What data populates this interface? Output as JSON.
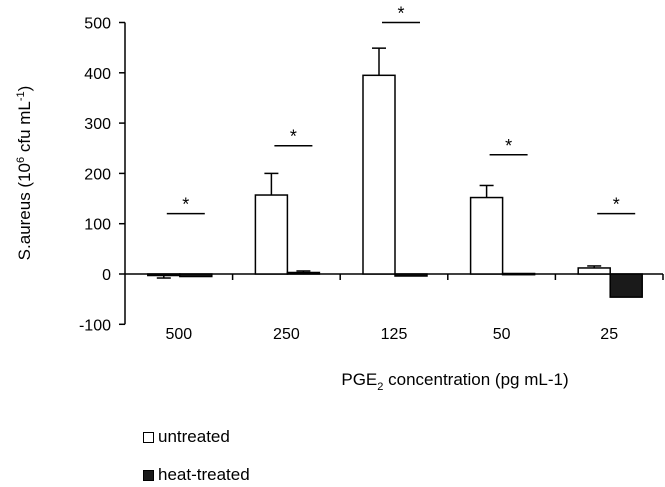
{
  "chart_data": {
    "type": "bar",
    "title": "",
    "xlabel_main": "PGE",
    "xlabel_sub": "2",
    "xlabel_rest": " concentration (pg mL-1)",
    "ylabel_main": "S.aureus (10",
    "ylabel_sup1": "6",
    "ylabel_mid": " cfu mL",
    "ylabel_sup2": "-1",
    "ylabel_end": ")",
    "categories": [
      "500",
      "250",
      "125",
      "50",
      "25"
    ],
    "ylim": [
      -100,
      500
    ],
    "yticks": [
      "-100",
      "0",
      "100",
      "200",
      "300",
      "400",
      "500"
    ],
    "grid": false,
    "legend_position": "bottom-left",
    "series": [
      {
        "name": "untreated",
        "values": [
          -3,
          157,
          395,
          152,
          12
        ],
        "errors": [
          5,
          43,
          54,
          24,
          4
        ],
        "fill": "#ffffff",
        "stroke": "#000000"
      },
      {
        "name": "heat-treated",
        "values": [
          -5,
          3,
          -4,
          1,
          -46
        ],
        "errors": [
          0,
          3,
          0,
          0,
          0
        ],
        "fill": "#1a1a1a",
        "stroke": "#000000"
      }
    ],
    "significance": [
      {
        "category": "500",
        "symbol": "*",
        "level": 120
      },
      {
        "category": "250",
        "symbol": "*",
        "level": 255
      },
      {
        "category": "125",
        "symbol": "*",
        "level": 500
      },
      {
        "category": "50",
        "symbol": "*",
        "level": 237
      },
      {
        "category": "25",
        "symbol": "*",
        "level": 120
      }
    ]
  },
  "legend": {
    "untreated": "untreated",
    "heat_treated": "heat-treated"
  }
}
